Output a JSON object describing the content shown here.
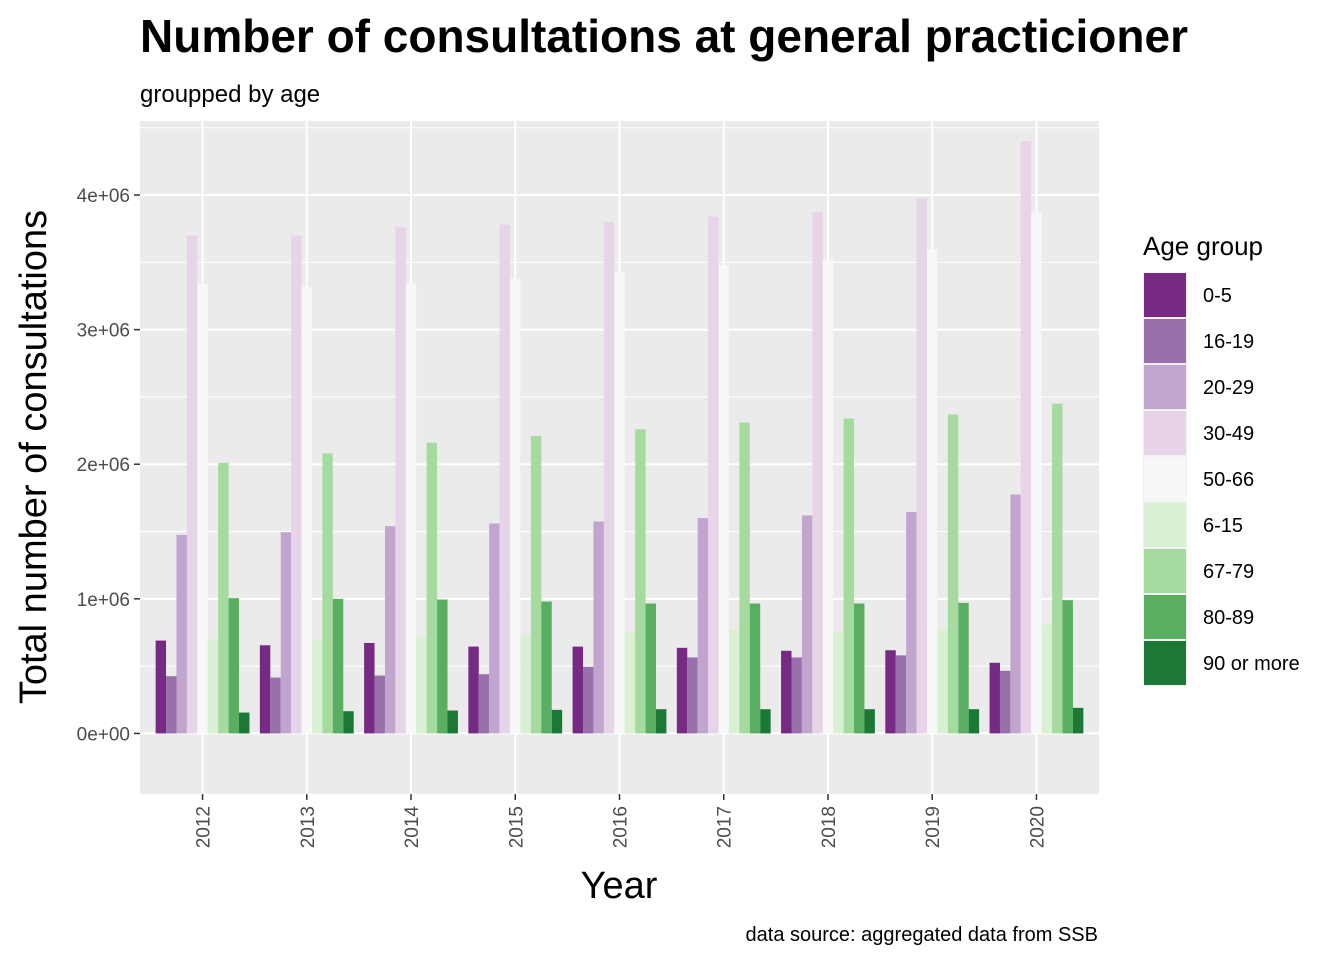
{
  "chart_data": {
    "type": "bar",
    "title": "Number of consultations at general practicioner",
    "subtitle": "groupped by age",
    "xlabel": "Year",
    "ylabel": "Total number of  consultations",
    "caption": "data source: aggregated data from SSB",
    "categories": [
      "2012",
      "2013",
      "2014",
      "2015",
      "2016",
      "2017",
      "2018",
      "2019",
      "2020"
    ],
    "ylim": [
      -450000,
      4550000
    ],
    "y_ticks": [
      0,
      1000000,
      2000000,
      3000000,
      4000000
    ],
    "y_tick_labels": [
      "0e+00",
      "1e+06",
      "2e+06",
      "3e+06",
      "4e+06"
    ],
    "grid": true,
    "legend": {
      "title": "Age group",
      "position": "right"
    },
    "series": [
      {
        "name": "0-5",
        "color": "#762a83",
        "values": [
          690000,
          655000,
          672000,
          645000,
          645000,
          636000,
          614000,
          618000,
          525000
        ]
      },
      {
        "name": "16-19",
        "color": "#9970ab",
        "values": [
          425000,
          415000,
          430000,
          440000,
          495000,
          565000,
          565000,
          580000,
          465000
        ]
      },
      {
        "name": "20-29",
        "color": "#c2a5cf",
        "values": [
          1475000,
          1495000,
          1540000,
          1560000,
          1575000,
          1600000,
          1620000,
          1645000,
          1775000
        ]
      },
      {
        "name": "30-49",
        "color": "#e7d4e8",
        "values": [
          3700000,
          3700000,
          3760000,
          3780000,
          3800000,
          3840000,
          3875000,
          3975000,
          4400000
        ]
      },
      {
        "name": "50-66",
        "color": "#f7f7f7",
        "values": [
          3340000,
          3320000,
          3345000,
          3380000,
          3430000,
          3480000,
          3520000,
          3600000,
          3870000
        ]
      },
      {
        "name": "6-15",
        "color": "#d9f0d3",
        "values": [
          700000,
          690000,
          720000,
          730000,
          750000,
          770000,
          750000,
          770000,
          810000
        ]
      },
      {
        "name": "67-79",
        "color": "#a6dba0",
        "values": [
          2010000,
          2080000,
          2160000,
          2210000,
          2260000,
          2310000,
          2340000,
          2370000,
          2450000
        ]
      },
      {
        "name": "80-89",
        "color": "#5aae61",
        "values": [
          1005000,
          1000000,
          995000,
          980000,
          965000,
          965000,
          965000,
          970000,
          990000
        ]
      },
      {
        "name": "90 or more",
        "color": "#1b7837",
        "values": [
          155000,
          165000,
          170000,
          175000,
          180000,
          180000,
          180000,
          180000,
          190000
        ]
      }
    ]
  }
}
